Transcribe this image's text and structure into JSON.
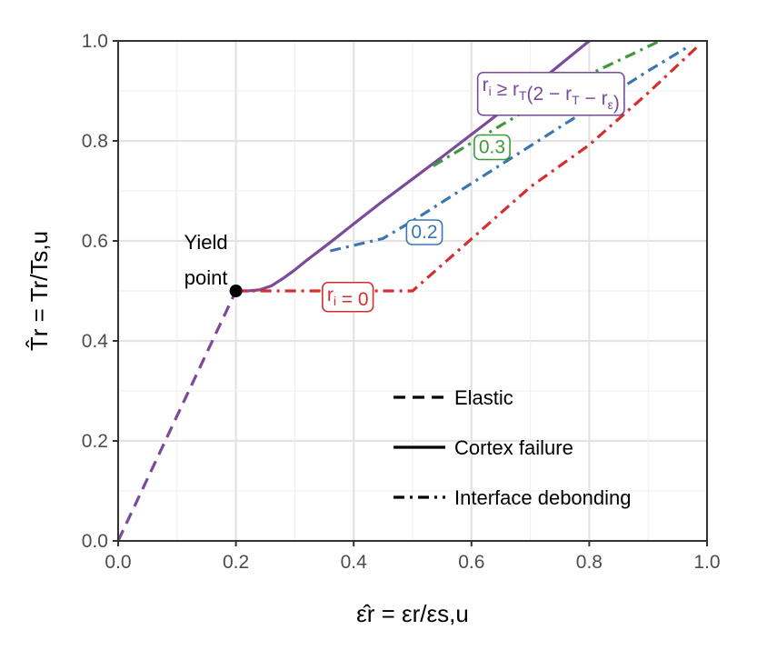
{
  "chart_data": {
    "type": "line",
    "xlim": [
      0,
      1
    ],
    "ylim": [
      0,
      1
    ],
    "x_ticks": [
      "0.0",
      "0.2",
      "0.4",
      "0.6",
      "0.8",
      "1.0"
    ],
    "y_ticks": [
      "0.0",
      "0.2",
      "0.4",
      "0.6",
      "0.8",
      "1.0"
    ],
    "grid": true,
    "xlabel": "ε̂r = εr/εs,u",
    "ylabel": "T̂r = Tr/Ts,u",
    "annotation": {
      "text_line1": "Yield",
      "text_line2": "point",
      "x": 0.2,
      "y": 0.5
    },
    "legend": {
      "placement": "bottom-right",
      "items": [
        {
          "label": "Elastic",
          "dash": "dashed"
        },
        {
          "label": "Cortex failure",
          "dash": "solid"
        },
        {
          "label": "Interface debonding",
          "dash": "dotdash"
        }
      ]
    },
    "series": [
      {
        "name": "ri ≥ rT(2 − rT − rε)",
        "color": "#7b4a9a",
        "segments": [
          {
            "style": "dashed",
            "points": [
              [
                0,
                0
              ],
              [
                0.2,
                0.5
              ]
            ]
          },
          {
            "style": "solid",
            "points": [
              [
                0.2,
                0.5
              ],
              [
                0.22,
                0.5
              ],
              [
                0.24,
                0.502
              ],
              [
                0.26,
                0.51
              ],
              [
                0.28,
                0.525
              ],
              [
                0.3,
                0.542
              ],
              [
                0.32,
                0.561
              ],
              [
                0.36,
                0.597
              ],
              [
                0.4,
                0.634
              ],
              [
                0.45,
                0.68
              ],
              [
                0.5,
                0.724
              ],
              [
                0.55,
                0.768
              ],
              [
                0.6,
                0.813
              ],
              [
                0.65,
                0.858
              ],
              [
                0.7,
                0.904
              ],
              [
                0.75,
                0.952
              ],
              [
                0.8,
                1.0
              ]
            ]
          }
        ]
      },
      {
        "name": "0.3",
        "color": "#3c9a3c",
        "segments": [
          {
            "style": "dotdash",
            "points": [
              [
                0.535,
                0.75
              ],
              [
                0.6,
                0.796
              ],
              [
                0.7,
                0.866
              ],
              [
                0.8,
                0.933
              ],
              [
                0.92,
                1.0
              ]
            ]
          }
        ]
      },
      {
        "name": "0.2",
        "color": "#3a77b0",
        "segments": [
          {
            "style": "dotdash",
            "points": [
              [
                0.36,
                0.58
              ],
              [
                0.45,
                0.605
              ],
              [
                0.5,
                0.64
              ],
              [
                0.6,
                0.715
              ],
              [
                0.7,
                0.79
              ],
              [
                0.8,
                0.865
              ],
              [
                0.9,
                0.94
              ],
              [
                0.97,
                0.99
              ]
            ]
          }
        ]
      },
      {
        "name": "ri = 0",
        "color": "#d62e2e",
        "segments": [
          {
            "style": "dotdash",
            "points": [
              [
                0.2,
                0.5
              ],
              [
                0.5,
                0.5
              ],
              [
                0.6,
                0.604
              ],
              [
                0.7,
                0.708
              ],
              [
                0.8,
                0.792
              ],
              [
                0.9,
                0.896
              ],
              [
                0.985,
                0.99
              ]
            ]
          }
        ]
      }
    ],
    "series_labels": [
      {
        "text_main": "r",
        "text_sub": "i",
        "text_rest": " ≥ r",
        "text_sub2": "T",
        "text_tail": "(2 − r",
        "text_sub3": "T",
        "text_tail2": " − r",
        "text_sub4": "ε",
        "text_end": ")",
        "color": "#7b4a9a",
        "x": 0.735,
        "y": 0.915
      },
      {
        "text": "0.3",
        "color": "#3c9a3c",
        "x": 0.635,
        "y": 0.79
      },
      {
        "text": "0.2",
        "color": "#3a77b0",
        "x": 0.52,
        "y": 0.62
      },
      {
        "text_main": "r",
        "text_sub": "i",
        "text_rest": " = 0",
        "color": "#d62e2e",
        "x": 0.39,
        "y": 0.495
      }
    ]
  }
}
